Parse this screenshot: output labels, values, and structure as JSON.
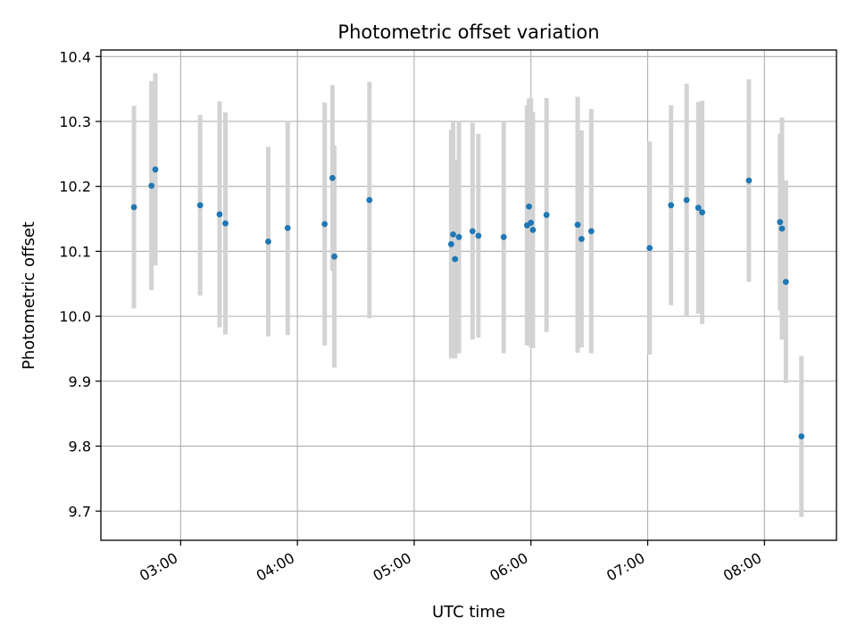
{
  "chart_data": {
    "type": "scatter",
    "title": "Photometric offset variation",
    "xlabel": "UTC time",
    "ylabel": "Photometric offset",
    "x_axis": {
      "kind": "time",
      "range": [
        "02:19",
        "08:37"
      ],
      "ticks": [
        "03:00",
        "04:00",
        "05:00",
        "06:00",
        "07:00",
        "08:00"
      ]
    },
    "y_axis": {
      "range": [
        9.655,
        10.41
      ],
      "ticks": [
        "9.7",
        "9.8",
        "9.9",
        "10.0",
        "10.1",
        "10.2",
        "10.3",
        "10.4"
      ]
    },
    "grid": true,
    "colors": {
      "point": "#1f77b4",
      "errorbar": "#d3d3d3",
      "grid": "#b0b0b0"
    },
    "points": [
      {
        "x": "02:36",
        "y": 10.168,
        "err": 0.156
      },
      {
        "x": "02:45",
        "y": 10.201,
        "err": 0.161
      },
      {
        "x": "02:47",
        "y": 10.226,
        "err": 0.148
      },
      {
        "x": "03:10",
        "y": 10.171,
        "err": 0.139
      },
      {
        "x": "03:20",
        "y": 10.157,
        "err": 0.174
      },
      {
        "x": "03:23",
        "y": 10.143,
        "err": 0.171
      },
      {
        "x": "03:45",
        "y": 10.115,
        "err": 0.146
      },
      {
        "x": "03:55",
        "y": 10.136,
        "err": 0.165
      },
      {
        "x": "04:14",
        "y": 10.142,
        "err": 0.187
      },
      {
        "x": "04:18",
        "y": 10.213,
        "err": 0.143
      },
      {
        "x": "04:19",
        "y": 10.092,
        "err": 0.171
      },
      {
        "x": "04:37",
        "y": 10.179,
        "err": 0.182
      },
      {
        "x": "05:19",
        "y": 10.111,
        "err": 0.176
      },
      {
        "x": "05:20",
        "y": 10.126,
        "err": 0.174
      },
      {
        "x": "05:21",
        "y": 10.088,
        "err": 0.153
      },
      {
        "x": "05:23",
        "y": 10.122,
        "err": 0.179
      },
      {
        "x": "05:30",
        "y": 10.131,
        "err": 0.167
      },
      {
        "x": "05:33",
        "y": 10.124,
        "err": 0.157
      },
      {
        "x": "05:46",
        "y": 10.122,
        "err": 0.179
      },
      {
        "x": "05:58",
        "y": 10.14,
        "err": 0.185
      },
      {
        "x": "05:59",
        "y": 10.169,
        "err": 0.166
      },
      {
        "x": "06:00",
        "y": 10.144,
        "err": 0.192
      },
      {
        "x": "06:01",
        "y": 10.133,
        "err": 0.182
      },
      {
        "x": "06:08",
        "y": 10.156,
        "err": 0.18
      },
      {
        "x": "06:24",
        "y": 10.141,
        "err": 0.197
      },
      {
        "x": "06:26",
        "y": 10.119,
        "err": 0.167
      },
      {
        "x": "06:31",
        "y": 10.131,
        "err": 0.188
      },
      {
        "x": "07:01",
        "y": 10.105,
        "err": 0.164
      },
      {
        "x": "07:12",
        "y": 10.171,
        "err": 0.154
      },
      {
        "x": "07:20",
        "y": 10.179,
        "err": 0.179
      },
      {
        "x": "07:26",
        "y": 10.167,
        "err": 0.163
      },
      {
        "x": "07:28",
        "y": 10.16,
        "err": 0.172
      },
      {
        "x": "07:52",
        "y": 10.209,
        "err": 0.156
      },
      {
        "x": "08:08",
        "y": 10.145,
        "err": 0.136
      },
      {
        "x": "08:09",
        "y": 10.135,
        "err": 0.171
      },
      {
        "x": "08:11",
        "y": 10.053,
        "err": 0.156
      },
      {
        "x": "08:19",
        "y": 9.815,
        "err": 0.124
      }
    ]
  }
}
